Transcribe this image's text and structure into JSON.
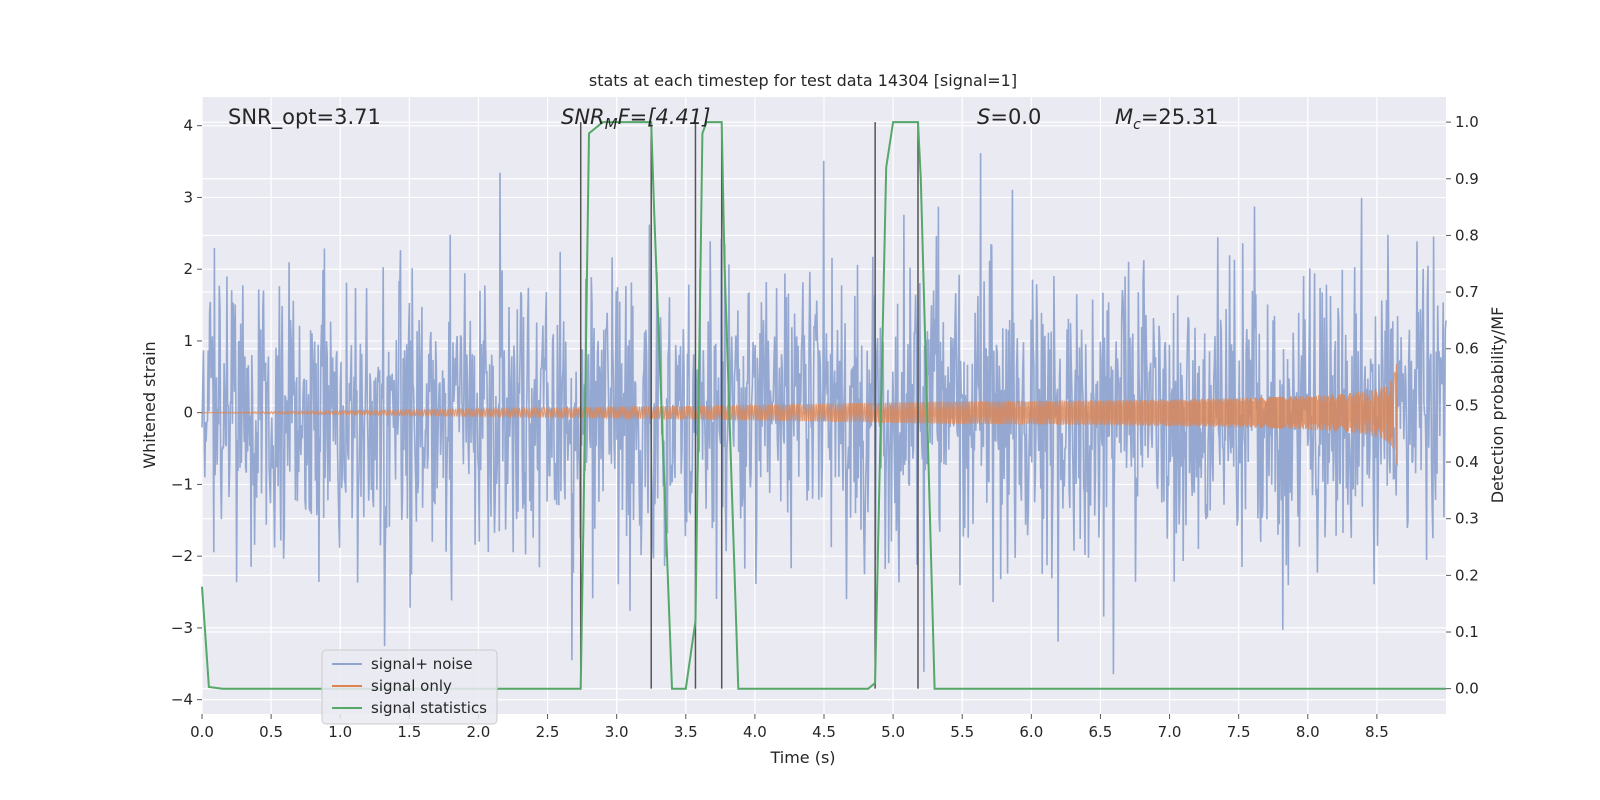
{
  "chart_data": {
    "type": "line",
    "title": "stats at each timestep for test data 14304 [signal=1]",
    "xlabel": "Time (s)",
    "ylabel": "Whitened strain",
    "ylabel_right": "Detection probability/MF",
    "xlim": [
      0.0,
      9.0
    ],
    "ylim": [
      -4.2,
      4.4
    ],
    "ylim_right": [
      -0.0447,
      1.0443
    ],
    "x_ticks": [
      "0.0",
      "0.5",
      "1.0",
      "1.5",
      "2.0",
      "2.5",
      "3.0",
      "3.5",
      "4.0",
      "4.5",
      "5.0",
      "5.5",
      "6.0",
      "6.5",
      "7.0",
      "7.5",
      "8.0",
      "8.5"
    ],
    "y_ticks": [
      "4",
      "3",
      "2",
      "1",
      "0",
      "−1",
      "−2",
      "−3",
      "−4"
    ],
    "y_ticks_right": [
      "1.0",
      "0.9",
      "0.8",
      "0.7",
      "0.6",
      "0.5",
      "0.4",
      "0.3",
      "0.2",
      "0.1",
      "0.0"
    ],
    "grid": true,
    "legend_position": "lower-left",
    "annotations": {
      "snr_opt": "SNR_opt=3.71",
      "snr_mf_main": "SNR",
      "snr_mf_sub": "M",
      "snr_mf_rest": "F=[4.41]",
      "s_var": "S",
      "s_rest": "=0.0",
      "mc_var": "M",
      "mc_sub": "c",
      "mc_rest": "=25.31"
    },
    "series": [
      {
        "name": "signal+ noise",
        "color": "#8fa4cf",
        "noise_std": 1.05,
        "duration": 9.0
      },
      {
        "name": "signal only",
        "color": "#dd8452",
        "chirp_end": 8.65,
        "chirp_peak_amplitude": 0.85
      },
      {
        "name": "signal statistics",
        "color": "#55a868",
        "x": [
          0.0,
          0.05,
          0.15,
          2.74,
          2.76,
          2.8,
          2.9,
          3.1,
          3.25,
          3.27,
          3.4,
          3.5,
          3.57,
          3.62,
          3.65,
          3.7,
          3.76,
          3.78,
          3.88,
          4.5,
          4.82,
          4.87,
          4.95,
          5.0,
          5.18,
          5.2,
          5.3,
          5.35,
          9.0
        ],
        "y": [
          0.18,
          0.003,
          0.0,
          0.0,
          0.3,
          0.98,
          1.0,
          1.0,
          1.0,
          0.85,
          0.0,
          0.0,
          0.12,
          0.98,
          1.0,
          1.0,
          1.0,
          0.75,
          0.0,
          0.0,
          0.0,
          0.01,
          0.92,
          1.0,
          1.0,
          0.9,
          0.0,
          0.0,
          0.0
        ]
      }
    ],
    "vertical_markers_x": [
      2.74,
      3.25,
      3.57,
      3.76,
      4.87,
      5.18
    ]
  }
}
